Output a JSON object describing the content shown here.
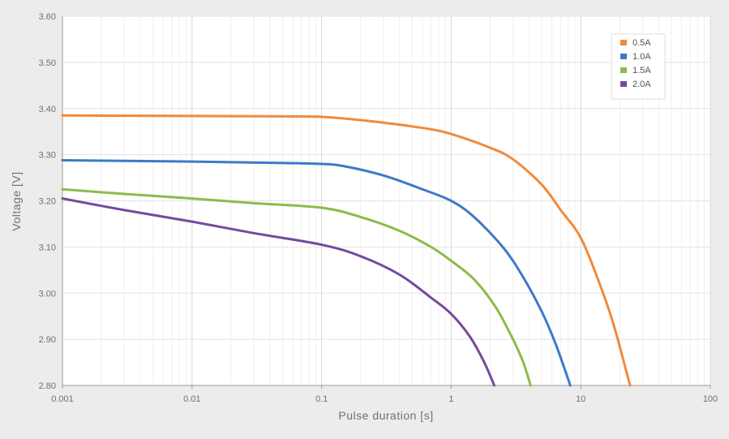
{
  "chart_data": {
    "type": "line",
    "title": "",
    "xlabel": "Pulse duration [s]",
    "ylabel": "Voltage [V]",
    "x_scale": "log",
    "xlim": [
      0.001,
      100
    ],
    "ylim": [
      2.8,
      3.6
    ],
    "x_ticks": [
      "0.001",
      "0.01",
      "0.1",
      "1",
      "10",
      "100"
    ],
    "y_ticks": [
      "2.80",
      "2.90",
      "3.00",
      "3.10",
      "3.20",
      "3.30",
      "3.40",
      "3.50",
      "3.60"
    ],
    "grid": true,
    "legend_position": "top-right",
    "series": [
      {
        "name": "0.5A",
        "color": "#f08a3c",
        "points": [
          [
            0.001,
            3.385
          ],
          [
            0.01,
            3.384
          ],
          [
            0.05,
            3.383
          ],
          [
            0.1,
            3.382
          ],
          [
            0.2,
            3.375
          ],
          [
            0.4,
            3.365
          ],
          [
            0.7,
            3.355
          ],
          [
            1.0,
            3.345
          ],
          [
            2.0,
            3.315
          ],
          [
            3.0,
            3.29
          ],
          [
            5.0,
            3.235
          ],
          [
            7.0,
            3.18
          ],
          [
            10.0,
            3.12
          ],
          [
            14.0,
            3.02
          ],
          [
            18.0,
            2.93
          ],
          [
            24.0,
            2.8
          ]
        ]
      },
      {
        "name": "1.0A",
        "color": "#3d79c6",
        "points": [
          [
            0.001,
            3.288
          ],
          [
            0.01,
            3.285
          ],
          [
            0.05,
            3.282
          ],
          [
            0.1,
            3.28
          ],
          [
            0.15,
            3.275
          ],
          [
            0.3,
            3.255
          ],
          [
            0.6,
            3.225
          ],
          [
            1.0,
            3.2
          ],
          [
            1.5,
            3.165
          ],
          [
            2.5,
            3.1
          ],
          [
            3.5,
            3.04
          ],
          [
            5.0,
            2.96
          ],
          [
            6.5,
            2.885
          ],
          [
            8.3,
            2.8
          ]
        ]
      },
      {
        "name": "1.5A",
        "color": "#8dbb4a",
        "points": [
          [
            0.001,
            3.225
          ],
          [
            0.003,
            3.215
          ],
          [
            0.01,
            3.205
          ],
          [
            0.03,
            3.195
          ],
          [
            0.1,
            3.185
          ],
          [
            0.2,
            3.165
          ],
          [
            0.4,
            3.135
          ],
          [
            0.7,
            3.1
          ],
          [
            1.0,
            3.07
          ],
          [
            1.5,
            3.03
          ],
          [
            2.2,
            2.97
          ],
          [
            3.0,
            2.9
          ],
          [
            3.6,
            2.85
          ],
          [
            4.1,
            2.8
          ]
        ]
      },
      {
        "name": "2.0A",
        "color": "#744a9e",
        "points": [
          [
            0.001,
            3.205
          ],
          [
            0.003,
            3.18
          ],
          [
            0.01,
            3.155
          ],
          [
            0.03,
            3.13
          ],
          [
            0.1,
            3.105
          ],
          [
            0.2,
            3.08
          ],
          [
            0.4,
            3.04
          ],
          [
            0.7,
            2.99
          ],
          [
            1.0,
            2.955
          ],
          [
            1.4,
            2.905
          ],
          [
            1.8,
            2.85
          ],
          [
            2.15,
            2.8
          ]
        ]
      }
    ]
  }
}
